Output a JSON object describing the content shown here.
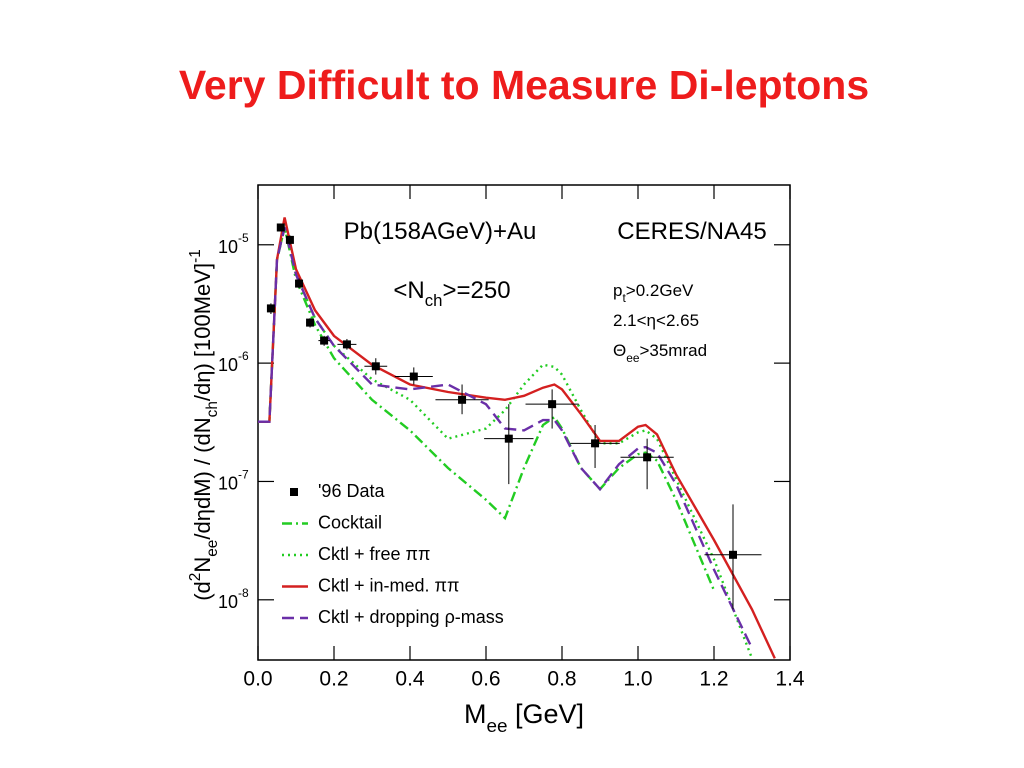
{
  "chart_data": {
    "type": "line",
    "title": "Very Difficult to Measure Di-leptons",
    "annotations": [
      {
        "parts": [
          {
            "text": "Pb(158AGeV)+Au"
          }
        ]
      },
      {
        "parts": [
          {
            "text": "CERES/NA45"
          }
        ]
      },
      {
        "parts": [
          {
            "text": "<N"
          },
          {
            "text": "ch",
            "sub": true
          },
          {
            "text": ">=250"
          }
        ]
      },
      {
        "parts": [
          {
            "text": "p"
          },
          {
            "text": "t",
            "sub": true
          },
          {
            "text": ">0.2GeV"
          }
        ]
      },
      {
        "parts": [
          {
            "text": "2.1<η<2.65"
          }
        ]
      },
      {
        "parts": [
          {
            "text": "Θ"
          },
          {
            "text": "ee",
            "sub": true
          },
          {
            "text": ">35mrad"
          }
        ]
      }
    ],
    "xlabel": {
      "parts": [
        {
          "text": "M"
        },
        {
          "text": "ee",
          "sub": true
        },
        {
          "text": " [GeV]"
        }
      ]
    },
    "ylabel": {
      "parts": [
        {
          "text": "(d"
        },
        {
          "text": "2",
          "sup": true
        },
        {
          "text": "N"
        },
        {
          "text": "ee",
          "sub": true
        },
        {
          "text": "/dηdM) / (dN"
        },
        {
          "text": "ch",
          "sub": true
        },
        {
          "text": "/dη)   [100MeV]"
        },
        {
          "text": "-1",
          "sup": true
        }
      ]
    },
    "xlim": [
      0,
      1.4
    ],
    "ylim": [
      3.1e-09,
      3.2e-05
    ],
    "log_y": true,
    "xticks": [
      {
        "value": 0,
        "label": "0.0"
      },
      0.2,
      0.4,
      0.6,
      0.8,
      {
        "value": 1,
        "label": "1.0"
      },
      1.2,
      1.4
    ],
    "yticks": [
      {
        "value": 1e-08,
        "label": "10",
        "exponent": "-8"
      },
      {
        "value": 1e-07,
        "label": "10",
        "exponent": "-7"
      },
      {
        "value": 1e-06,
        "label": "10",
        "exponent": "-6"
      },
      {
        "value": 1e-05,
        "label": "10",
        "exponent": "-5"
      }
    ],
    "x": [
      0,
      0.03,
      0.05,
      0.07,
      0.1,
      0.15,
      0.2,
      0.3,
      0.4,
      0.5,
      0.6,
      0.65,
      0.7,
      0.75,
      0.78,
      0.8,
      0.85,
      0.9,
      0.95,
      1.0,
      1.02,
      1.05,
      1.1,
      1.2,
      1.3,
      1.36
    ],
    "points": {
      "name": "'96 Data",
      "color": "#000000",
      "x": [
        0.034,
        0.06,
        0.084,
        0.108,
        0.137,
        0.174,
        0.234,
        0.31,
        0.41,
        0.537,
        0.66,
        0.774,
        0.887,
        1.024,
        1.25
      ],
      "y": [
        2.9e-06,
        1.4e-05,
        1.1e-05,
        4.7e-06,
        2.2e-06,
        1.55e-06,
        1.44e-06,
        9.4e-07,
        7.7e-07,
        4.9e-07,
        2.3e-07,
        4.5e-07,
        2.1e-07,
        1.6e-07,
        2.4e-08
      ],
      "xerr": [
        0.008,
        0.008,
        0.008,
        0.008,
        0.01,
        0.015,
        0.025,
        0.03,
        0.05,
        0.07,
        0.065,
        0.07,
        0.065,
        0.07,
        0.075
      ],
      "y_low": [
        2.6e-06,
        1.3e-05,
        1e-05,
        4.3e-06,
        2e-06,
        1.4e-06,
        1.3e-06,
        8e-07,
        6.6e-07,
        3.7e-07,
        9.5e-08,
        2.8e-07,
        1.3e-07,
        8.6e-08,
        8.3e-09
      ],
      "y_high": [
        3.2e-06,
        1.5e-05,
        1.2e-05,
        5.2e-06,
        2.4e-06,
        1.7e-06,
        1.6e-06,
        1.1e-06,
        9.2e-07,
        6.6e-07,
        4.5e-07,
        6e-07,
        3e-07,
        2.3e-07,
        6.4e-08
      ]
    },
    "series": [
      {
        "name": "Cocktail",
        "color": "#22cc22",
        "style": "dashdot",
        "values": [
          3.2e-07,
          3.2e-07,
          7.5e-06,
          1.4e-05,
          5.1e-06,
          2.1e-06,
          1.1e-06,
          4.9e-07,
          2.7e-07,
          1.3e-07,
          7e-08,
          4.9e-08,
          1.3e-07,
          3e-07,
          3.5e-07,
          2.8e-07,
          1.3e-07,
          8.6e-08,
          1.3e-07,
          1.7e-07,
          1.75e-07,
          1.5e-07,
          7e-08,
          1.2e-08,
          null,
          null
        ]
      },
      {
        "name": "Cktl + free ππ",
        "color": "#22cc22",
        "style": "dotted",
        "values": [
          3.2e-07,
          3.2e-07,
          7.5e-06,
          1.4e-05,
          5.6e-06,
          2.4e-06,
          1.4e-06,
          7.3e-07,
          4.9e-07,
          2.3e-07,
          2.8e-07,
          4e-07,
          6.6e-07,
          9.7e-07,
          9.3e-07,
          8e-07,
          4e-07,
          2.1e-07,
          2.1e-07,
          2.6e-07,
          2.7e-07,
          2.3e-07,
          1.05e-07,
          2.2e-08,
          3.2e-09,
          null
        ]
      },
      {
        "name": "Cktl + in-med. ππ",
        "color": "#d42020",
        "style": "solid",
        "values": [
          3.2e-07,
          3.2e-07,
          7.5e-06,
          1.7e-05,
          6.2e-06,
          2.8e-06,
          1.7e-06,
          9.7e-07,
          6.6e-07,
          5.7e-07,
          5.1e-07,
          4.9e-07,
          5.3e-07,
          6.2e-07,
          6.6e-07,
          6e-07,
          3.7e-07,
          2.2e-07,
          2.2e-07,
          2.9e-07,
          3e-07,
          2.5e-07,
          1.15e-07,
          3.2e-08,
          8.3e-09,
          3.2e-09
        ]
      },
      {
        "name": "Cktl + dropping ρ-mass",
        "color": "#6a2fa8",
        "style": "dashed",
        "values": [
          3.2e-07,
          3.2e-07,
          7.5e-06,
          1.4e-05,
          5.6e-06,
          2.4e-06,
          1.4e-06,
          6.6e-07,
          6e-07,
          6.6e-07,
          4.5e-07,
          2.8e-07,
          2.7e-07,
          3.3e-07,
          3.3e-07,
          2.7e-07,
          1.3e-07,
          8.6e-08,
          1.4e-07,
          1.9e-07,
          1.95e-07,
          1.75e-07,
          9.5e-08,
          1.8e-08,
          3.9e-09,
          null
        ]
      }
    ]
  }
}
